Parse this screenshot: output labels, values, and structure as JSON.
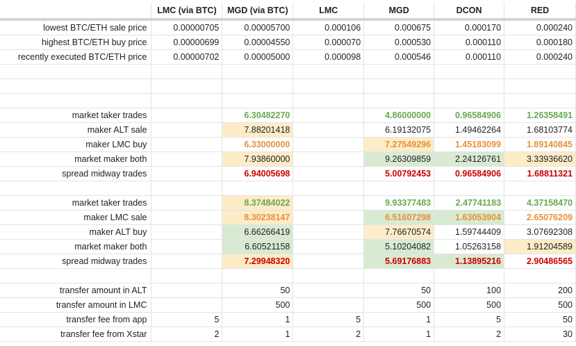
{
  "columns": [
    "",
    "LMC (via BTC)",
    "MGD (via BTC)",
    "LMC",
    "MGD",
    "DCON",
    "RED"
  ],
  "rows": [
    {
      "label": "lowest BTC/ETH sale price",
      "cells": [
        {
          "v": "0.00000705"
        },
        {
          "v": "0.00005700"
        },
        {
          "v": "0.000106"
        },
        {
          "v": "0.000675"
        },
        {
          "v": "0.000170"
        },
        {
          "v": "0.000240"
        }
      ]
    },
    {
      "label": "highest BTC/ETH buy price",
      "cells": [
        {
          "v": "0.00000699"
        },
        {
          "v": "0.00004550"
        },
        {
          "v": "0.000070"
        },
        {
          "v": "0.000530"
        },
        {
          "v": "0.000110"
        },
        {
          "v": "0.000180"
        }
      ]
    },
    {
      "label": "recently executed BTC/ETH price",
      "cells": [
        {
          "v": "0.00000702"
        },
        {
          "v": "0.00005000"
        },
        {
          "v": "0.000098"
        },
        {
          "v": "0.000546"
        },
        {
          "v": "0.000110"
        },
        {
          "v": "0.000240"
        }
      ]
    },
    {
      "label": "",
      "cells": []
    },
    {
      "label": "",
      "cells": []
    },
    {
      "label": "",
      "cells": []
    },
    {
      "label": "market taker trades",
      "cells": [
        {
          "v": ""
        },
        {
          "v": "6.30482270",
          "c": "g"
        },
        {
          "v": ""
        },
        {
          "v": "4.86000000",
          "c": "g"
        },
        {
          "v": "0.96584906",
          "c": "g"
        },
        {
          "v": "1.26358491",
          "c": "g"
        }
      ]
    },
    {
      "label": "maker ALT sale",
      "cells": [
        {
          "v": ""
        },
        {
          "v": "7.88201418",
          "bg": "by"
        },
        {
          "v": ""
        },
        {
          "v": "6.19132075"
        },
        {
          "v": "1.49462264"
        },
        {
          "v": "1.68103774"
        }
      ]
    },
    {
      "label": "maker LMC buy",
      "cells": [
        {
          "v": ""
        },
        {
          "v": "6.33000000",
          "c": "o"
        },
        {
          "v": ""
        },
        {
          "v": "7.27549296",
          "c": "o",
          "bg": "by"
        },
        {
          "v": "1.45183099",
          "c": "o"
        },
        {
          "v": "1.89140845",
          "c": "o"
        }
      ]
    },
    {
      "label": "market maker both",
      "cells": [
        {
          "v": ""
        },
        {
          "v": "7.93860000",
          "bg": "by"
        },
        {
          "v": ""
        },
        {
          "v": "9.26309859",
          "bg": "bg"
        },
        {
          "v": "2.24126761",
          "bg": "bg"
        },
        {
          "v": "3.33936620",
          "bg": "by"
        }
      ]
    },
    {
      "label": "spread midway trades",
      "cells": [
        {
          "v": ""
        },
        {
          "v": "6.94005698",
          "c": "r"
        },
        {
          "v": ""
        },
        {
          "v": "5.00792453",
          "c": "r"
        },
        {
          "v": "0.96584906",
          "c": "r"
        },
        {
          "v": "1.68811321",
          "c": "r"
        }
      ]
    },
    {
      "label": "",
      "cells": []
    },
    {
      "label": "market taker trades",
      "cells": [
        {
          "v": ""
        },
        {
          "v": "8.37484022",
          "c": "g",
          "bg": "by"
        },
        {
          "v": ""
        },
        {
          "v": "9.93377483",
          "c": "g"
        },
        {
          "v": "2.47741183",
          "c": "g"
        },
        {
          "v": "4.37158470",
          "c": "g"
        }
      ]
    },
    {
      "label": "maker LMC sale",
      "cells": [
        {
          "v": ""
        },
        {
          "v": "8.30238147",
          "c": "o",
          "bg": "by"
        },
        {
          "v": ""
        },
        {
          "v": "6.51607298",
          "c": "o",
          "bg": "bg"
        },
        {
          "v": "1.63053904",
          "c": "o",
          "bg": "bg"
        },
        {
          "v": "2.65076209",
          "c": "o"
        }
      ]
    },
    {
      "label": "maker ALT buy",
      "cells": [
        {
          "v": ""
        },
        {
          "v": "6.66266419",
          "bg": "bg"
        },
        {
          "v": ""
        },
        {
          "v": "7.76670574",
          "bg": "by"
        },
        {
          "v": "1.59744409"
        },
        {
          "v": "3.07692308"
        }
      ]
    },
    {
      "label": "market maker both",
      "cells": [
        {
          "v": ""
        },
        {
          "v": "6.60521158",
          "bg": "bg"
        },
        {
          "v": ""
        },
        {
          "v": "5.10204082",
          "bg": "bg"
        },
        {
          "v": "1.05263158"
        },
        {
          "v": "1.91204589",
          "bg": "by"
        }
      ]
    },
    {
      "label": "spread midway trades",
      "cells": [
        {
          "v": ""
        },
        {
          "v": "7.29948320",
          "c": "r",
          "bg": "by"
        },
        {
          "v": ""
        },
        {
          "v": "5.69176883",
          "c": "r",
          "bg": "bg"
        },
        {
          "v": "1.13895216",
          "c": "r",
          "bg": "bg"
        },
        {
          "v": "2.90486565",
          "c": "r"
        }
      ]
    },
    {
      "label": "",
      "cells": []
    },
    {
      "label": "transfer amount in ALT",
      "cells": [
        {
          "v": ""
        },
        {
          "v": "50"
        },
        {
          "v": ""
        },
        {
          "v": "50"
        },
        {
          "v": "100"
        },
        {
          "v": "200"
        }
      ]
    },
    {
      "label": "transfer amount in LMC",
      "cells": [
        {
          "v": ""
        },
        {
          "v": "500"
        },
        {
          "v": ""
        },
        {
          "v": "500"
        },
        {
          "v": "500"
        },
        {
          "v": "500"
        }
      ]
    },
    {
      "label": "transfer fee from app",
      "cells": [
        {
          "v": "5"
        },
        {
          "v": "1"
        },
        {
          "v": "5"
        },
        {
          "v": "1"
        },
        {
          "v": "5"
        },
        {
          "v": "50"
        }
      ]
    },
    {
      "label": "transfer fee from Xstar",
      "cells": [
        {
          "v": "2"
        },
        {
          "v": "1"
        },
        {
          "v": "2"
        },
        {
          "v": "1"
        },
        {
          "v": "2"
        },
        {
          "v": "30"
        }
      ]
    }
  ],
  "colors": {
    "green": "#6aa84f",
    "orange": "#e69138",
    "red": "#cc0000",
    "fill_yellow": "#fdecc8",
    "fill_green": "#d9ead3"
  }
}
